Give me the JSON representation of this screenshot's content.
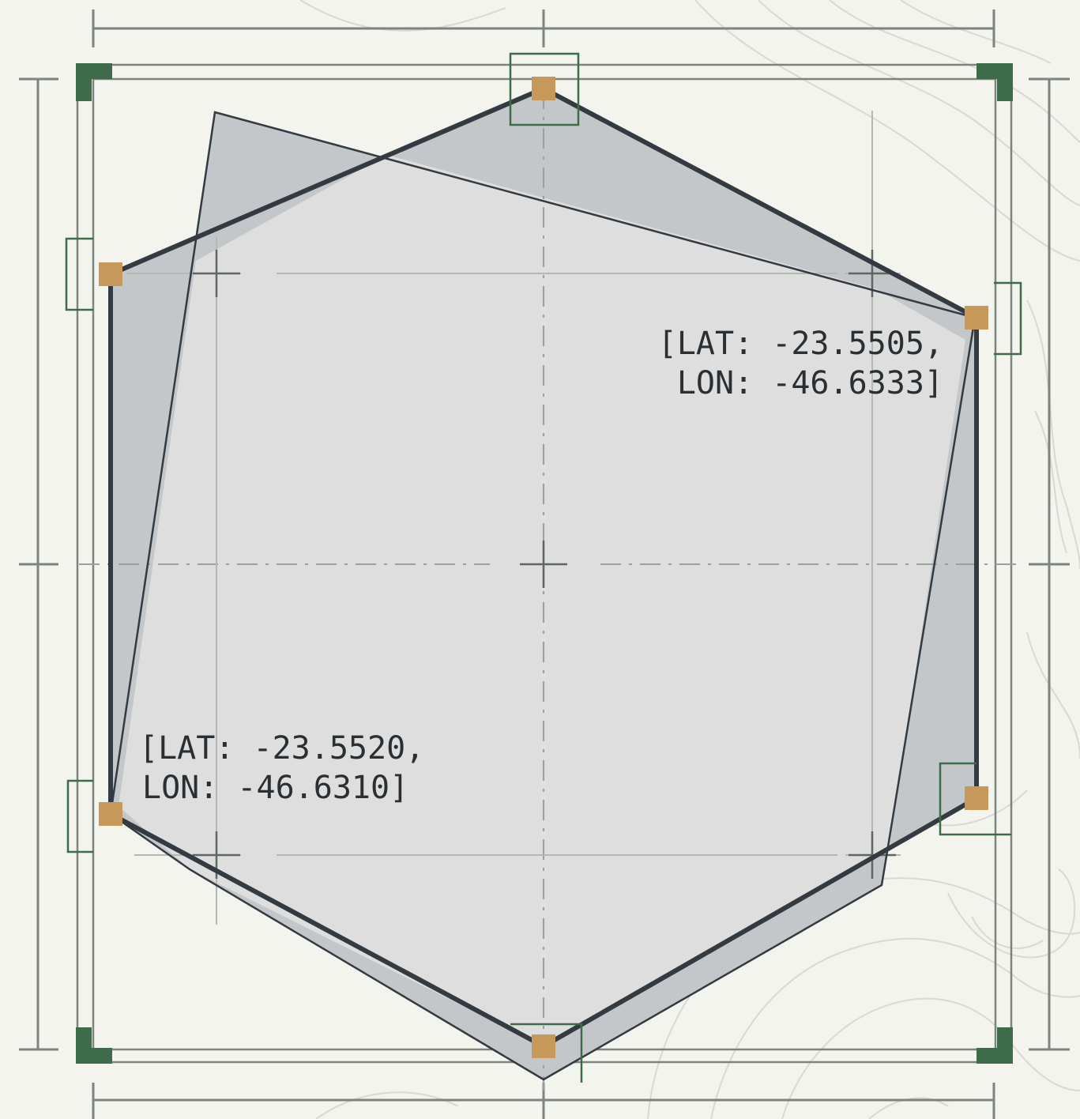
{
  "colors": {
    "background": "#f4f4ef",
    "topo_line": "#d7d9d3",
    "frame_line": "#7c857d",
    "corner_bracket": "#3e6b4a",
    "polygon_stroke": "#333a41",
    "polygon_fill": "#dedfdd",
    "overlap_fill": "#c3c7ca",
    "vertex_marker": "#c6985a",
    "guide_line": "#9aa09b"
  },
  "labels": {
    "upper_right": {
      "line1": "[LAT: -23.5505,",
      "line2": "LON: -46.6333]"
    },
    "lower_left": {
      "line1": "[LAT: -23.5520,",
      "line2": "LON: -46.6310]"
    }
  },
  "icons": {
    "vertex": "square-marker-icon",
    "center": "crosshair-icon",
    "corner": "corner-bracket-icon"
  }
}
